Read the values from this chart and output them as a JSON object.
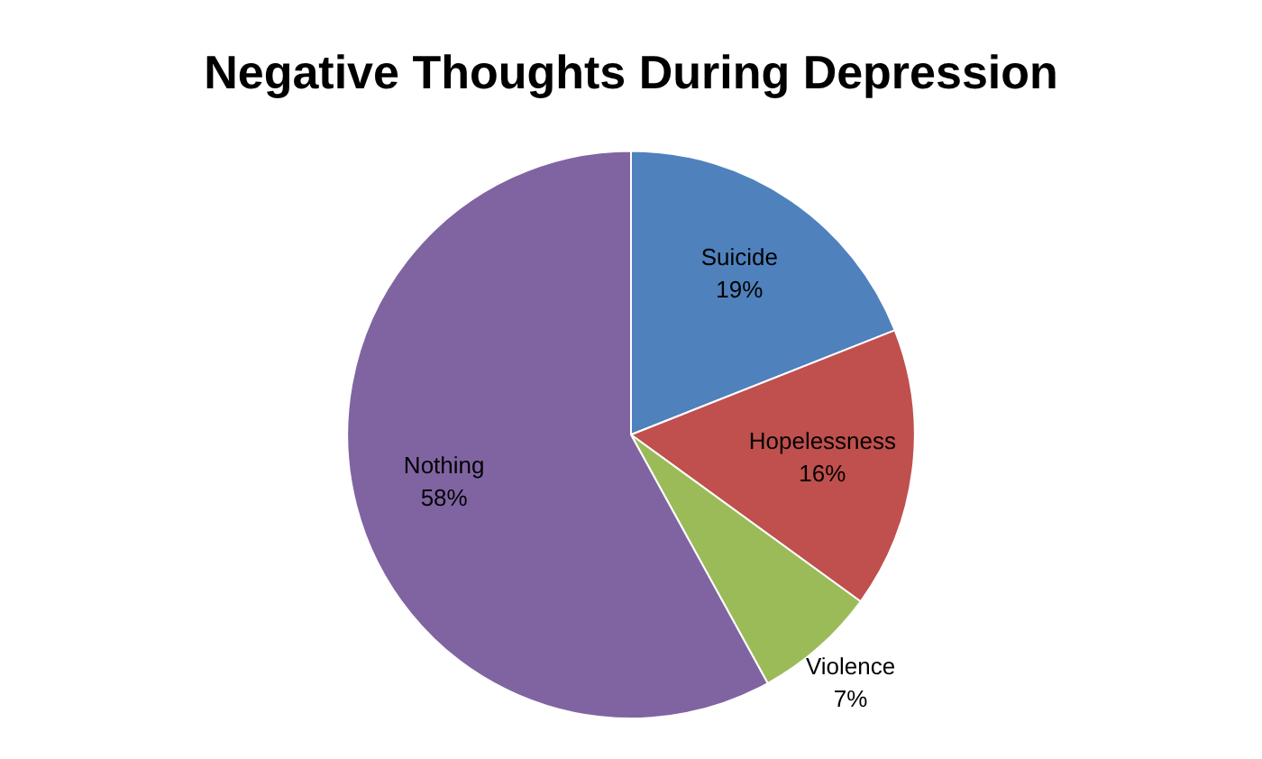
{
  "chart_data": {
    "type": "pie",
    "title": "Negative Thoughts During Depression",
    "categories": [
      "Suicide",
      "Hopelessness",
      "Violence",
      "Nothing"
    ],
    "values": [
      19,
      16,
      7,
      58
    ],
    "value_labels": [
      "19%",
      "16%",
      "7%",
      "58%"
    ],
    "colors": [
      "#4f81bd",
      "#c0504d",
      "#9bbb59",
      "#8064a2"
    ],
    "legend": false
  }
}
